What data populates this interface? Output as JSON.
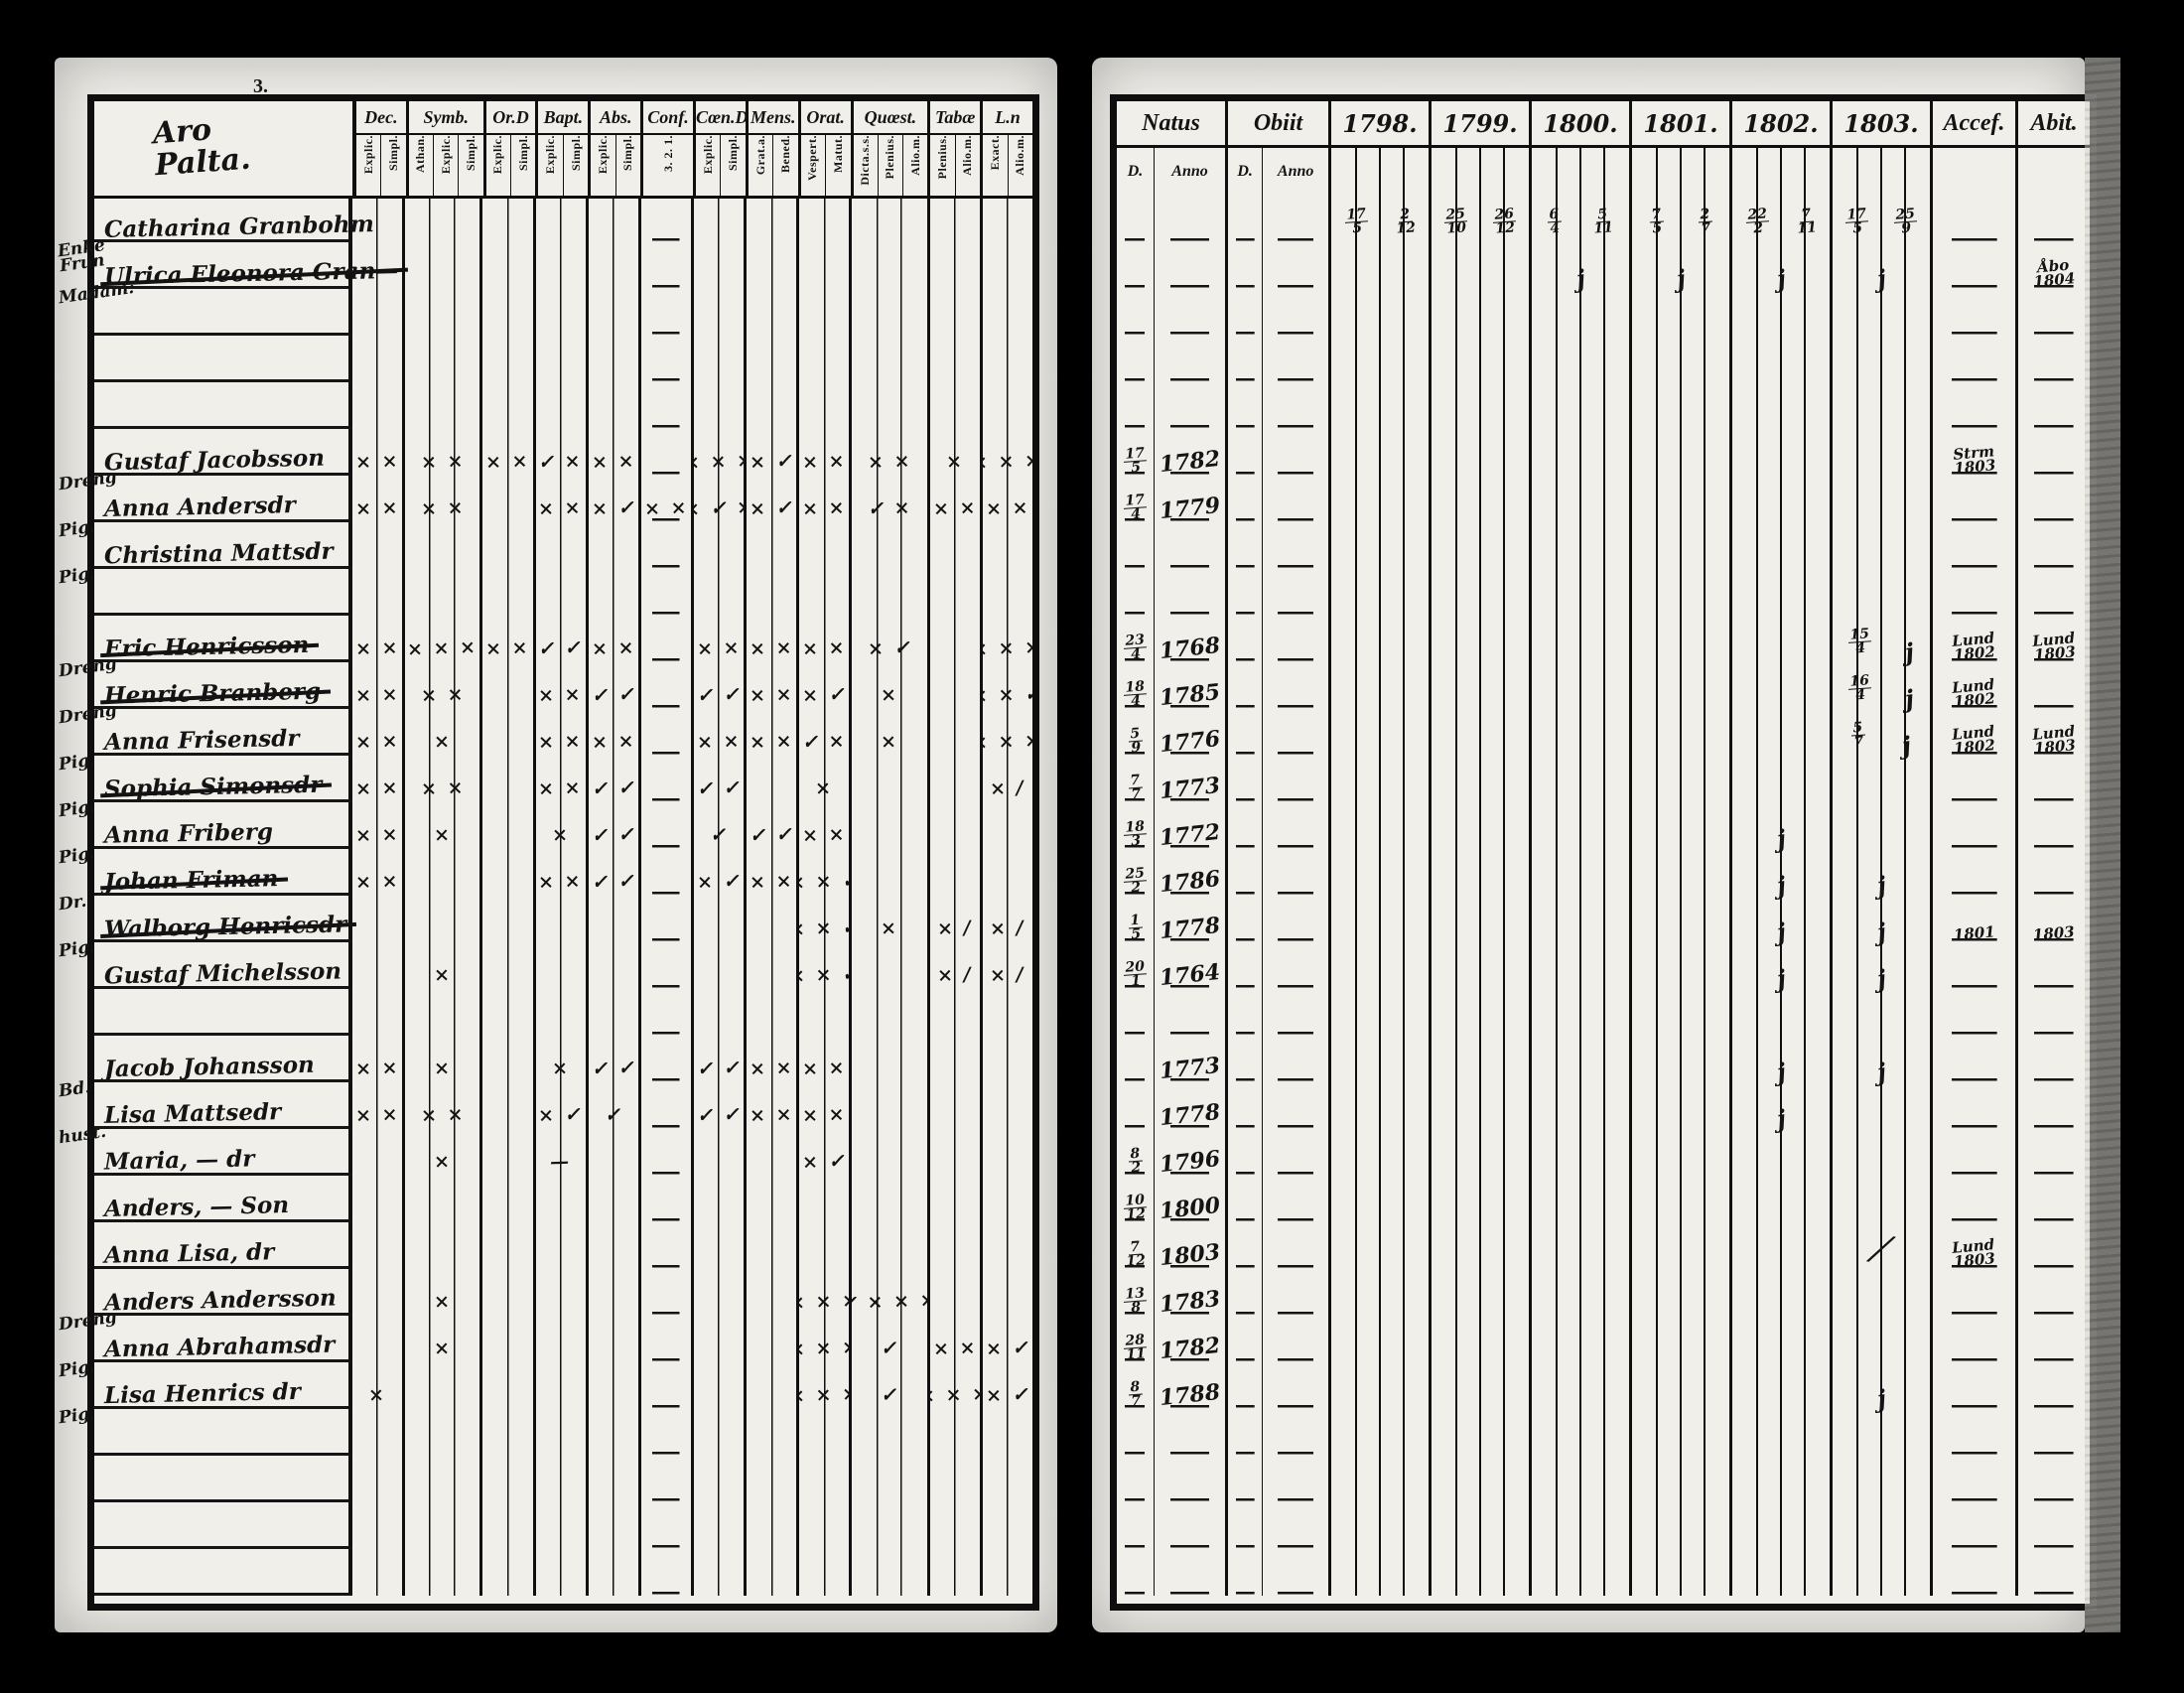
{
  "scan": {
    "background": "#000000",
    "paper": "#efede8",
    "ink": "#141414"
  },
  "left_page": {
    "page_mark": "3.",
    "heading_script": "Aro\nPalta.",
    "column_groups": [
      {
        "label": "Dec.",
        "subs": [
          "Explic.",
          "Simpl."
        ]
      },
      {
        "label": "Symb.",
        "subs": [
          "Athan.",
          "Explic.",
          "Simpl."
        ]
      },
      {
        "label": "Or.D",
        "subs": [
          "Explic.",
          "Simpl."
        ]
      },
      {
        "label": "Bapt.",
        "subs": [
          "Explic.",
          "Simpl."
        ]
      },
      {
        "label": "Abs.",
        "subs": [
          "Explic.",
          "Simpl."
        ]
      },
      {
        "label": "Conf.",
        "subs": [
          "3. 2. 1."
        ]
      },
      {
        "label": "Cœn.D",
        "subs": [
          "Explic.",
          "Simpl."
        ]
      },
      {
        "label": "Mens.",
        "subs": [
          "Grat.a.",
          "Bened."
        ]
      },
      {
        "label": "Orat.",
        "subs": [
          "Vespert.",
          "Matut."
        ]
      },
      {
        "label": "Quœst.",
        "subs": [
          "Dicta.s.s.",
          "Plenius.",
          "Alio.m."
        ]
      },
      {
        "label": "Tabæ",
        "subs": [
          "Plenius.",
          "Alio.m."
        ]
      },
      {
        "label": "L.n",
        "subs": [
          "Exact.",
          "Alio.m."
        ]
      }
    ]
  },
  "right_page": {
    "natus_label": "Natus",
    "obiit_label": "Obiit",
    "natus_subs": [
      "D.",
      "Anno"
    ],
    "obiit_subs": [
      "D.",
      "Anno"
    ],
    "year_labels": [
      "1798.",
      "1799.",
      "1800.",
      "1801.",
      "1802.",
      "1803."
    ],
    "accel_label": "Accef.",
    "abit_label": "Abit."
  },
  "rows": [
    {
      "margin": "Enke\nFrun",
      "name": "Catharina Granbohm",
      "style": "underline",
      "marks": [
        "",
        "",
        "",
        "",
        "",
        "",
        "",
        "",
        "",
        "",
        "",
        ""
      ],
      "natus_d": "",
      "natus_anno": "",
      "obiit_d": "",
      "obiit_anno": "",
      "years": [
        "17/5 2/12",
        "25/10 26/12",
        "6/4 5/11",
        "7/5 2/7",
        "22/2 7/11",
        "17/5 25/9"
      ],
      "accel": "",
      "abit": ""
    },
    {
      "margin": "Madam:",
      "name": "Ulrica Eleonora Gran—",
      "style": "struck",
      "marks": [
        "",
        "",
        "",
        "",
        "",
        "",
        "",
        "",
        "",
        "",
        "",
        ""
      ],
      "natus_d": "",
      "natus_anno": "",
      "obiit_d": "",
      "obiit_anno": "",
      "years": [
        "",
        "",
        "j",
        "j",
        "j",
        "j"
      ],
      "accel": "",
      "abit": "Åbo\n1804"
    },
    {},
    {},
    {},
    {
      "margin": "Dreng",
      "name": "Gustaf Jacobsson",
      "style": "underline",
      "marks": [
        "× ×",
        "× ×",
        "× ×",
        "✓ ×",
        "× ×",
        "",
        "× × ×",
        "× ✓",
        "× ×",
        "× ×",
        "×",
        "× × ×"
      ],
      "natus_d": "17/5",
      "natus_anno": "1782",
      "obiit_d": "",
      "obiit_anno": "",
      "years": [
        "",
        "",
        "",
        "",
        "",
        ""
      ],
      "accel": "Strm\n1803",
      "abit": ""
    },
    {
      "margin": "Pig.",
      "name": "Anna Andersdr",
      "style": "underline",
      "marks": [
        "× ×",
        "× ×",
        "",
        "× ×",
        "× ✓",
        "× ×",
        "× ✓ ×",
        "× ✓",
        "× ×",
        "✓ ×",
        "× ×",
        "× ×"
      ],
      "natus_d": "17/4",
      "natus_anno": "1779",
      "obiit_d": "",
      "obiit_anno": "",
      "years": [
        "",
        "",
        "",
        "",
        "",
        ""
      ],
      "accel": "",
      "abit": ""
    },
    {
      "margin": "Pig.",
      "name": "Christina Mattsdr",
      "style": "underline",
      "marks": [
        "",
        "",
        "",
        "",
        "",
        "",
        "",
        "",
        "",
        "",
        "",
        ""
      ],
      "natus_d": "",
      "natus_anno": "",
      "obiit_d": "",
      "obiit_anno": "",
      "years": [
        "",
        "",
        "",
        "",
        "",
        ""
      ],
      "accel": "",
      "abit": ""
    },
    {},
    {
      "margin": "Dreng",
      "name": "Eric Henricsson",
      "style": "struck",
      "marks": [
        "× ×",
        "× × ×",
        "× ×",
        "✓ ✓",
        "× ×",
        "",
        "× ×",
        "× ×",
        "× ×",
        "× ✓",
        "",
        "× × ×"
      ],
      "natus_d": "23/4",
      "natus_anno": "1768",
      "obiit_d": "",
      "obiit_anno": "",
      "years": [
        "",
        "",
        "",
        "",
        "",
        "15/4 j"
      ],
      "accel": "Lund\n1802",
      "abit": "Lund\n1803"
    },
    {
      "margin": "Dreng",
      "name": "Henric Branberg",
      "style": "struck",
      "marks": [
        "× ×",
        "× ×",
        "",
        "× ×",
        "✓ ✓",
        "",
        "✓ ✓",
        "× ×",
        "× ✓",
        "×",
        "",
        "× × ✓"
      ],
      "natus_d": "18/4",
      "natus_anno": "1785",
      "obiit_d": "",
      "obiit_anno": "",
      "years": [
        "",
        "",
        "",
        "",
        "",
        "16/4 j"
      ],
      "accel": "Lund\n1802",
      "abit": ""
    },
    {
      "margin": "Pig.",
      "name": "Anna Frisensdr",
      "style": "underline",
      "marks": [
        "× ×",
        "×",
        "",
        "× ×",
        "× ×",
        "",
        "× ×",
        "× ×",
        "✓ ×",
        "×",
        "",
        "× × ×"
      ],
      "natus_d": "5/9",
      "natus_anno": "1776",
      "obiit_d": "",
      "obiit_anno": "",
      "years": [
        "",
        "",
        "",
        "",
        "",
        "5/7 j"
      ],
      "accel": "Lund\n1802",
      "abit": "Lund\n1803"
    },
    {
      "margin": "Pig.",
      "name": "Sophia Simonsdr",
      "style": "struck",
      "marks": [
        "× ×",
        "× ×",
        "",
        "× ×",
        "✓ ✓",
        "",
        "✓ ✓",
        "",
        "×",
        "",
        "",
        "× /"
      ],
      "natus_d": "7/7",
      "natus_anno": "1773",
      "obiit_d": "",
      "obiit_anno": "",
      "years": [
        "",
        "",
        "",
        "",
        "",
        ""
      ],
      "accel": "",
      "abit": ""
    },
    {
      "margin": "Pig.",
      "name": "Anna Friberg",
      "style": "underline",
      "marks": [
        "× ×",
        "×",
        "",
        "×",
        "✓ ✓",
        "",
        "✓",
        "✓ ✓",
        "× ×",
        "",
        "",
        ""
      ],
      "natus_d": "18/3",
      "natus_anno": "1772",
      "obiit_d": "",
      "obiit_anno": "",
      "years": [
        "",
        "",
        "",
        "",
        "j",
        ""
      ],
      "accel": "",
      "abit": ""
    },
    {
      "margin": "Dr.",
      "name": "Johan Friman",
      "style": "struck",
      "marks": [
        "× ×",
        "",
        "",
        "× ×",
        "✓ ✓",
        "",
        "× ✓",
        "× ×",
        "× × ✓",
        "",
        "",
        ""
      ],
      "natus_d": "25/2",
      "natus_anno": "1786",
      "obiit_d": "",
      "obiit_anno": "",
      "years": [
        "",
        "",
        "",
        "",
        "j",
        "j"
      ],
      "accel": "",
      "abit": ""
    },
    {
      "margin": "Pig.",
      "name": "Walborg Henricsdr",
      "style": "struck",
      "marks": [
        "",
        "",
        "",
        "",
        "",
        "",
        "",
        "",
        "× × ✓",
        "×",
        "× /",
        "× /"
      ],
      "natus_d": "1/5",
      "natus_anno": "1778",
      "obiit_d": "",
      "obiit_anno": "",
      "years": [
        "",
        "",
        "",
        "",
        "j",
        "j"
      ],
      "accel": "1801",
      "abit": "1803"
    },
    {
      "margin": "",
      "name": "Gustaf Michelsson",
      "style": "underline",
      "marks": [
        "",
        "×",
        "",
        "",
        "",
        "",
        "",
        "",
        "× × ✓",
        "",
        "× /",
        "× /"
      ],
      "natus_d": "20/1",
      "natus_anno": "1764",
      "obiit_d": "",
      "obiit_anno": "",
      "years": [
        "",
        "",
        "",
        "",
        "j",
        "j"
      ],
      "accel": "",
      "abit": ""
    },
    {},
    {
      "margin": "Bd.",
      "name": "Jacob Johansson",
      "style": "underline",
      "marks": [
        "× ×",
        "×",
        "",
        "×",
        "✓ ✓",
        "",
        "✓ ✓",
        "× ×",
        "× ×",
        "",
        "",
        ""
      ],
      "natus_d": "",
      "natus_anno": "1773",
      "obiit_d": "",
      "obiit_anno": "",
      "years": [
        "",
        "",
        "",
        "",
        "j",
        "j"
      ],
      "accel": "",
      "abit": ""
    },
    {
      "margin": "hust.",
      "name": "Lisa Mattsedr",
      "style": "underline",
      "marks": [
        "× ×",
        "× ×",
        "",
        "× ✓",
        "✓",
        "",
        "✓ ✓",
        "× ×",
        "× ×",
        "",
        "",
        ""
      ],
      "natus_d": "",
      "natus_anno": "1778",
      "obiit_d": "",
      "obiit_anno": "",
      "years": [
        "",
        "",
        "",
        "",
        "j",
        ""
      ],
      "accel": "",
      "abit": ""
    },
    {
      "margin": "",
      "name": "Maria, —  dr",
      "style": "underline",
      "marks": [
        "",
        "×",
        "",
        "—",
        "",
        "",
        "",
        "",
        "× ✓",
        "",
        "",
        ""
      ],
      "natus_d": "8/2",
      "natus_anno": "1796",
      "obiit_d": "",
      "obiit_anno": "",
      "years": [
        "",
        "",
        "",
        "",
        "",
        ""
      ],
      "accel": "",
      "abit": ""
    },
    {
      "margin": "",
      "name": "Anders, —  Son",
      "style": "underline",
      "marks": [
        "",
        "",
        "",
        "",
        "",
        "",
        "",
        "",
        "",
        "",
        "",
        ""
      ],
      "natus_d": "10/12",
      "natus_anno": "1800",
      "obiit_d": "",
      "obiit_anno": "",
      "years": [
        "",
        "",
        "",
        "",
        "",
        ""
      ],
      "accel": "",
      "abit": ""
    },
    {
      "margin": "",
      "name": "Anna Lisa,  dr",
      "style": "underline",
      "marks": [
        "",
        "",
        "",
        "",
        "",
        "",
        "",
        "",
        "",
        "",
        "",
        ""
      ],
      "natus_d": "7/12",
      "natus_anno": "1803",
      "obiit_d": "",
      "obiit_anno": "",
      "years": [
        "",
        "",
        "",
        "",
        "",
        "†"
      ],
      "accel": "Lund\n1803",
      "abit": ""
    },
    {
      "margin": "Dreng",
      "name": "Anders Andersson",
      "style": "underline",
      "marks": [
        "",
        "×",
        "",
        "",
        "",
        "",
        "",
        "",
        "× × ×",
        "✓ × × ×",
        "",
        ""
      ],
      "natus_d": "13/8",
      "natus_anno": "1783",
      "obiit_d": "",
      "obiit_anno": "",
      "years": [
        "",
        "",
        "",
        "",
        "",
        ""
      ],
      "accel": "",
      "abit": ""
    },
    {
      "margin": "Pig.",
      "name": "Anna Abrahamsdr",
      "style": "underline",
      "marks": [
        "",
        "×",
        "",
        "",
        "",
        "",
        "",
        "",
        "× × ×",
        "✓",
        "× ×",
        "× ✓"
      ],
      "natus_d": "28/11",
      "natus_anno": "1782",
      "obiit_d": "",
      "obiit_anno": "",
      "years": [
        "",
        "",
        "",
        "",
        "",
        ""
      ],
      "accel": "",
      "abit": ""
    },
    {
      "margin": "Pig.",
      "name": "Lisa Henrics  dr",
      "style": "underline",
      "marks": [
        "×",
        "",
        "",
        "",
        "",
        "",
        "",
        "",
        "× × ×",
        "✓",
        "× × ×",
        "× ✓"
      ],
      "natus_d": "8/7",
      "natus_anno": "1788",
      "obiit_d": "",
      "obiit_anno": "",
      "years": [
        "",
        "",
        "",
        "",
        "",
        "j"
      ],
      "accel": "",
      "abit": ""
    },
    {},
    {},
    {},
    {}
  ]
}
